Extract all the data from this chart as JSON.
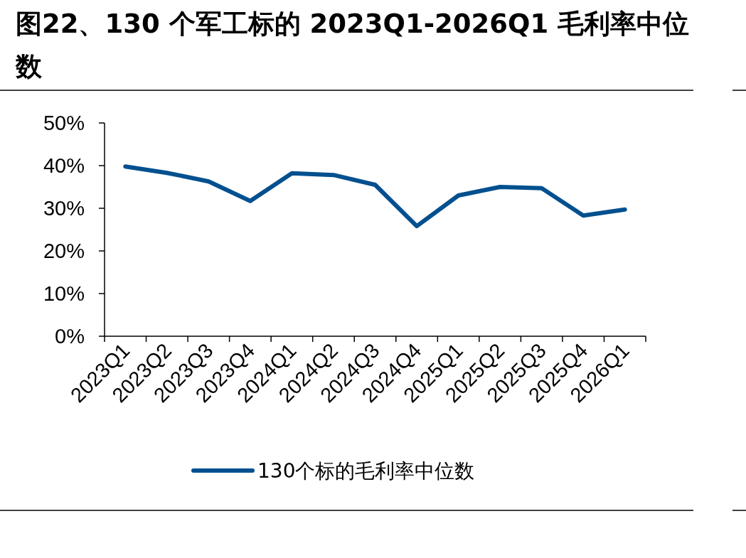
{
  "chart_data": {
    "type": "line",
    "title": "图22、130 个军工标的 2023Q1-2026Q1 毛利率中位数",
    "categories": [
      "2023Q1",
      "2023Q2",
      "2023Q3",
      "2023Q4",
      "2024Q1",
      "2024Q2",
      "2024Q3",
      "2024Q4",
      "2025Q1",
      "2025Q2",
      "2025Q3",
      "2025Q4",
      "2026Q1"
    ],
    "series": [
      {
        "name": "130个标的毛利率中位数",
        "color": "#00508f",
        "values": [
          39.8,
          38.3,
          36.3,
          31.7,
          38.2,
          37.8,
          35.5,
          25.8,
          33.0,
          35.0,
          34.7,
          28.3,
          29.7
        ]
      }
    ],
    "ylim": [
      0,
      50
    ],
    "yticks": [
      {
        "value": 0,
        "label": "0%"
      },
      {
        "value": 10,
        "label": "10%"
      },
      {
        "value": 20,
        "label": "20%"
      },
      {
        "value": 30,
        "label": "30%"
      },
      {
        "value": 40,
        "label": "40%"
      },
      {
        "value": 50,
        "label": "50%"
      }
    ],
    "legend": "bottom",
    "marker": "none",
    "line_style": "solid",
    "grid": false
  }
}
